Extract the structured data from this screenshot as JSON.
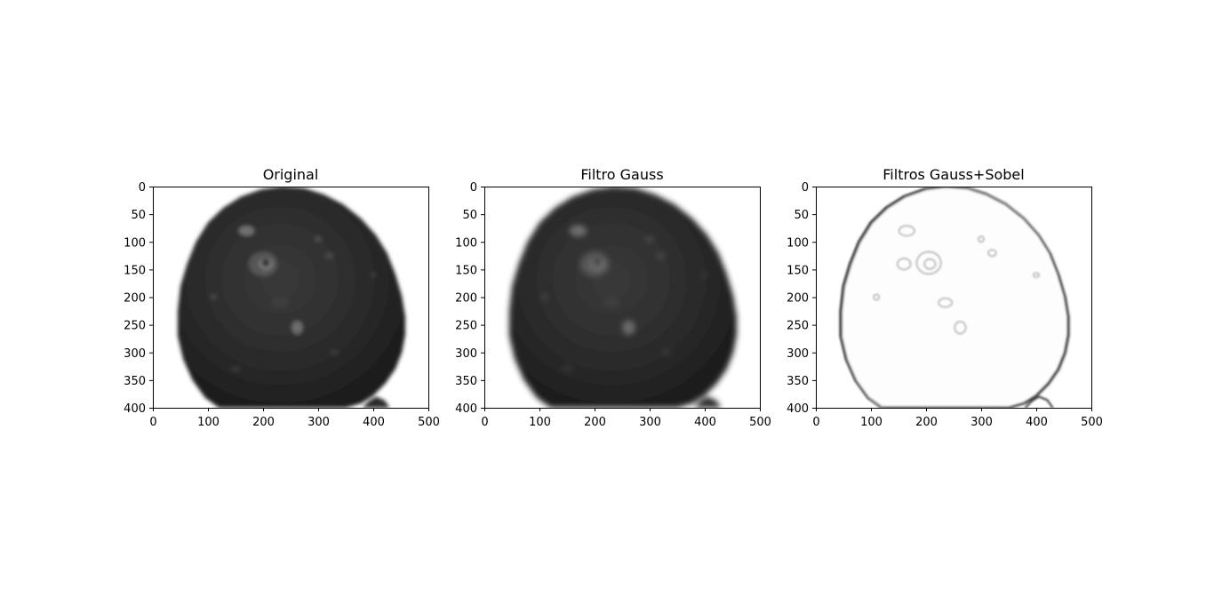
{
  "chart_data": [
    {
      "type": "image",
      "title": "Original",
      "xlim": [
        0,
        500
      ],
      "ylim": [
        400,
        0
      ],
      "xticks": [
        "0",
        "100",
        "200",
        "300",
        "400",
        "500"
      ],
      "yticks": [
        "0",
        "50",
        "100",
        "150",
        "200",
        "250",
        "300",
        "350",
        "400"
      ],
      "image_kind": "grayscale-dark-blob"
    },
    {
      "type": "image",
      "title": "Filtro Gauss",
      "xlim": [
        0,
        500
      ],
      "ylim": [
        400,
        0
      ],
      "xticks": [
        "0",
        "100",
        "200",
        "300",
        "400",
        "500"
      ],
      "yticks": [
        "0",
        "50",
        "100",
        "150",
        "200",
        "250",
        "300",
        "350",
        "400"
      ],
      "image_kind": "grayscale-dark-blob"
    },
    {
      "type": "image",
      "title": "Filtros Gauss+Sobel",
      "xlim": [
        0,
        500
      ],
      "ylim": [
        400,
        0
      ],
      "xticks": [
        "0",
        "100",
        "200",
        "300",
        "400",
        "500"
      ],
      "yticks": [
        "0",
        "50",
        "100",
        "150",
        "200",
        "250",
        "300",
        "350",
        "400"
      ],
      "image_kind": "edge-map"
    }
  ]
}
